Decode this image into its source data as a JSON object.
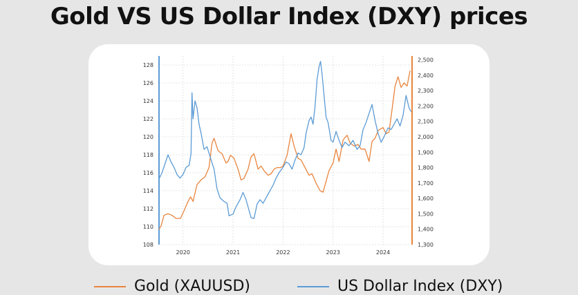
{
  "title": "Gold VS US Dollar Index (DXY) prices",
  "colors": {
    "gold": "#e8843c",
    "dxy": "#5b9bd5",
    "background": "#e6e6e6",
    "card": "#ffffff"
  },
  "legend": {
    "gold": "Gold (XAUUSD)",
    "dxy": "US Dollar Index (DXY)"
  },
  "chart_data": {
    "type": "line",
    "title": "Gold VS US Dollar Index (DXY) prices",
    "x_ticks": [
      "2020",
      "2021",
      "2022",
      "2023",
      "2024"
    ],
    "x_range": [
      2019.52,
      2024.58
    ],
    "y_left": {
      "label": "",
      "range": [
        108,
        129
      ],
      "ticks": [
        "108",
        "110",
        "112",
        "114",
        "116",
        "118",
        "120",
        "122",
        "124",
        "126",
        "128"
      ]
    },
    "y_right": {
      "label": "",
      "range": [
        1300,
        2525
      ],
      "ticks": [
        "1,300",
        "1,400",
        "1,500",
        "1,600",
        "1,700",
        "1,800",
        "1,900",
        "2,000",
        "2,100",
        "2,200",
        "2,300",
        "2,400",
        "2,500"
      ]
    },
    "grid": true,
    "legend_position": "bottom",
    "series": [
      {
        "name": "Gold (XAUUSD)",
        "axis": "right",
        "points": [
          [
            2019.52,
            1400
          ],
          [
            2019.56,
            1420
          ],
          [
            2019.62,
            1490
          ],
          [
            2019.7,
            1500
          ],
          [
            2019.78,
            1490
          ],
          [
            2019.86,
            1470
          ],
          [
            2019.95,
            1470
          ],
          [
            2020.02,
            1520
          ],
          [
            2020.1,
            1580
          ],
          [
            2020.15,
            1610
          ],
          [
            2020.2,
            1580
          ],
          [
            2020.28,
            1690
          ],
          [
            2020.36,
            1720
          ],
          [
            2020.44,
            1740
          ],
          [
            2020.52,
            1800
          ],
          [
            2020.58,
            1960
          ],
          [
            2020.62,
            1990
          ],
          [
            2020.7,
            1910
          ],
          [
            2020.78,
            1890
          ],
          [
            2020.86,
            1830
          ],
          [
            2020.9,
            1840
          ],
          [
            2020.95,
            1880
          ],
          [
            2021.02,
            1860
          ],
          [
            2021.1,
            1790
          ],
          [
            2021.16,
            1720
          ],
          [
            2021.22,
            1730
          ],
          [
            2021.3,
            1790
          ],
          [
            2021.36,
            1870
          ],
          [
            2021.42,
            1890
          ],
          [
            2021.5,
            1790
          ],
          [
            2021.56,
            1810
          ],
          [
            2021.62,
            1780
          ],
          [
            2021.7,
            1750
          ],
          [
            2021.76,
            1760
          ],
          [
            2021.82,
            1790
          ],
          [
            2021.88,
            1800
          ],
          [
            2021.95,
            1800
          ],
          [
            2022.0,
            1810
          ],
          [
            2022.08,
            1880
          ],
          [
            2022.16,
            2020
          ],
          [
            2022.22,
            1940
          ],
          [
            2022.3,
            1860
          ],
          [
            2022.36,
            1850
          ],
          [
            2022.44,
            1800
          ],
          [
            2022.52,
            1750
          ],
          [
            2022.58,
            1760
          ],
          [
            2022.66,
            1700
          ],
          [
            2022.74,
            1650
          ],
          [
            2022.8,
            1640
          ],
          [
            2022.86,
            1710
          ],
          [
            2022.92,
            1780
          ],
          [
            2023.0,
            1830
          ],
          [
            2023.06,
            1920
          ],
          [
            2023.12,
            1840
          ],
          [
            2023.2,
            1980
          ],
          [
            2023.28,
            2010
          ],
          [
            2023.34,
            1960
          ],
          [
            2023.42,
            1940
          ],
          [
            2023.5,
            1950
          ],
          [
            2023.56,
            1920
          ],
          [
            2023.64,
            1920
          ],
          [
            2023.72,
            1840
          ],
          [
            2023.78,
            1970
          ],
          [
            2023.84,
            1990
          ],
          [
            2023.9,
            2040
          ],
          [
            2024.0,
            2060
          ],
          [
            2024.06,
            2020
          ],
          [
            2024.12,
            2030
          ],
          [
            2024.18,
            2180
          ],
          [
            2024.24,
            2330
          ],
          [
            2024.3,
            2390
          ],
          [
            2024.36,
            2320
          ],
          [
            2024.42,
            2350
          ],
          [
            2024.48,
            2330
          ],
          [
            2024.54,
            2430
          ]
        ]
      },
      {
        "name": "US Dollar Index (DXY)",
        "axis": "left",
        "points": [
          [
            2019.52,
            115.3
          ],
          [
            2019.58,
            116.0
          ],
          [
            2019.64,
            117.0
          ],
          [
            2019.7,
            118.0
          ],
          [
            2019.76,
            117.2
          ],
          [
            2019.82,
            116.6
          ],
          [
            2019.88,
            115.8
          ],
          [
            2019.94,
            115.4
          ],
          [
            2020.0,
            115.8
          ],
          [
            2020.06,
            116.6
          ],
          [
            2020.12,
            116.8
          ],
          [
            2020.16,
            118.1
          ],
          [
            2020.18,
            124.9
          ],
          [
            2020.2,
            122.0
          ],
          [
            2020.24,
            124.0
          ],
          [
            2020.28,
            123.2
          ],
          [
            2020.32,
            121.4
          ],
          [
            2020.36,
            120.4
          ],
          [
            2020.42,
            118.6
          ],
          [
            2020.48,
            118.9
          ],
          [
            2020.54,
            117.8
          ],
          [
            2020.62,
            116.4
          ],
          [
            2020.68,
            114.2
          ],
          [
            2020.74,
            113.2
          ],
          [
            2020.82,
            112.8
          ],
          [
            2020.88,
            112.6
          ],
          [
            2020.92,
            111.2
          ],
          [
            2021.0,
            111.4
          ],
          [
            2021.06,
            112.2
          ],
          [
            2021.14,
            113.0
          ],
          [
            2021.2,
            113.8
          ],
          [
            2021.26,
            113.0
          ],
          [
            2021.32,
            111.8
          ],
          [
            2021.36,
            111.0
          ],
          [
            2021.42,
            110.9
          ],
          [
            2021.48,
            112.5
          ],
          [
            2021.54,
            113.0
          ],
          [
            2021.6,
            112.6
          ],
          [
            2021.66,
            113.2
          ],
          [
            2021.72,
            113.8
          ],
          [
            2021.8,
            114.6
          ],
          [
            2021.86,
            115.4
          ],
          [
            2021.92,
            116.0
          ],
          [
            2022.0,
            116.6
          ],
          [
            2022.06,
            117.2
          ],
          [
            2022.12,
            117.0
          ],
          [
            2022.18,
            116.4
          ],
          [
            2022.24,
            117.4
          ],
          [
            2022.3,
            118.2
          ],
          [
            2022.36,
            118.0
          ],
          [
            2022.42,
            118.8
          ],
          [
            2022.46,
            120.4
          ],
          [
            2022.52,
            121.8
          ],
          [
            2022.56,
            122.2
          ],
          [
            2022.6,
            121.4
          ],
          [
            2022.64,
            123.4
          ],
          [
            2022.68,
            126.4
          ],
          [
            2022.72,
            127.8
          ],
          [
            2022.75,
            128.4
          ],
          [
            2022.78,
            127.0
          ],
          [
            2022.82,
            124.6
          ],
          [
            2022.86,
            122.2
          ],
          [
            2022.9,
            121.6
          ],
          [
            2022.96,
            119.6
          ],
          [
            2023.0,
            119.4
          ],
          [
            2023.06,
            120.6
          ],
          [
            2023.12,
            119.6
          ],
          [
            2023.18,
            118.8
          ],
          [
            2023.24,
            119.4
          ],
          [
            2023.32,
            119.0
          ],
          [
            2023.4,
            119.6
          ],
          [
            2023.48,
            118.6
          ],
          [
            2023.54,
            119.0
          ],
          [
            2023.6,
            120.8
          ],
          [
            2023.66,
            121.6
          ],
          [
            2023.72,
            122.6
          ],
          [
            2023.78,
            123.6
          ],
          [
            2023.84,
            121.8
          ],
          [
            2023.9,
            120.4
          ],
          [
            2023.96,
            119.4
          ],
          [
            2024.02,
            120.0
          ],
          [
            2024.1,
            121.0
          ],
          [
            2024.16,
            120.8
          ],
          [
            2024.22,
            121.4
          ],
          [
            2024.28,
            122.0
          ],
          [
            2024.34,
            121.2
          ],
          [
            2024.4,
            122.4
          ],
          [
            2024.46,
            124.6
          ],
          [
            2024.52,
            123.2
          ],
          [
            2024.56,
            122.8
          ]
        ]
      }
    ]
  }
}
